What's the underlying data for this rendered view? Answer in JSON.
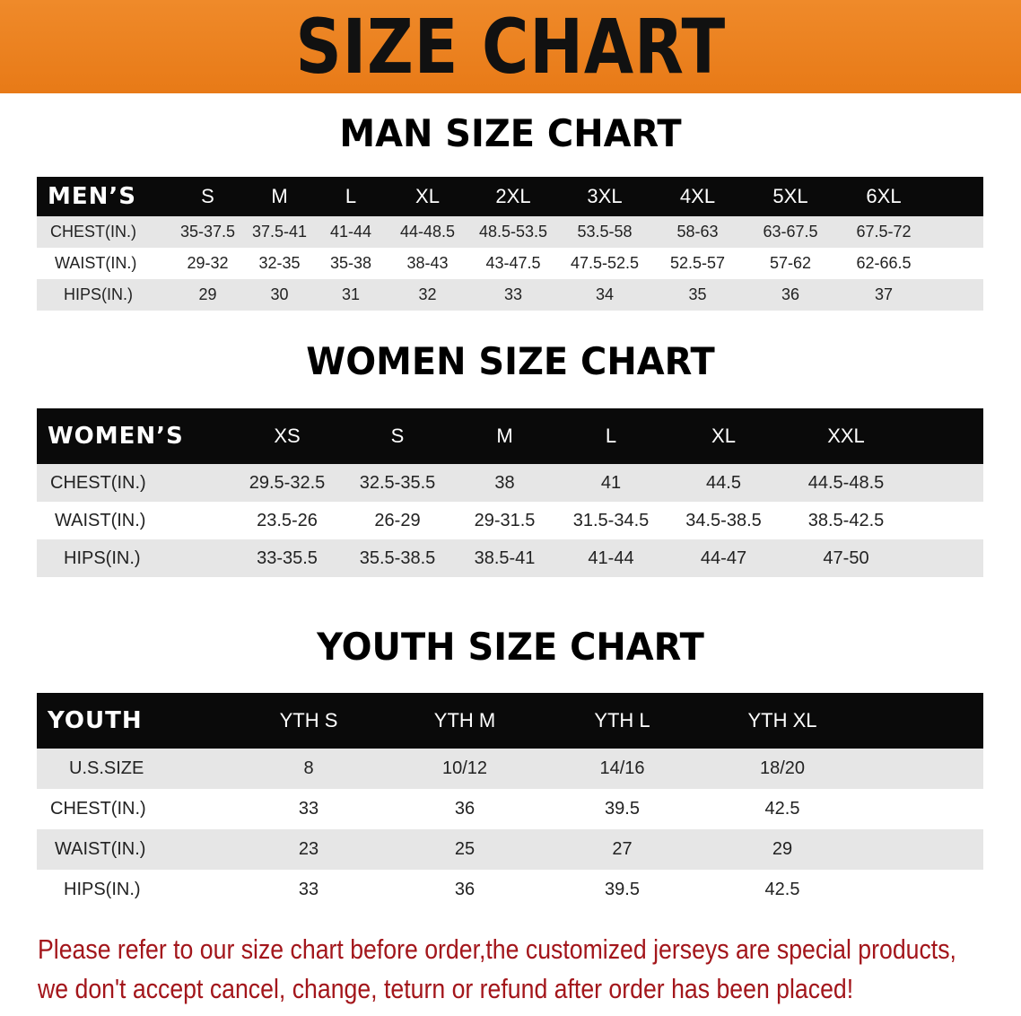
{
  "banner": "SIZE CHART",
  "men": {
    "title": "MAN SIZE CHART",
    "header": "MEN’S",
    "sizes": [
      "S",
      "M",
      "L",
      "XL",
      "2XL",
      "3XL",
      "4XL",
      "5XL",
      "6XL"
    ],
    "rows": [
      {
        "label": "CHEST(IN.)",
        "values": [
          "35-37.5",
          "37.5-41",
          "41-44",
          "44-48.5",
          "48.5-53.5",
          "53.5-58",
          "58-63",
          "63-67.5",
          "67.5-72"
        ]
      },
      {
        "label": "WAIST(IN.)",
        "values": [
          "29-32",
          "32-35",
          "35-38",
          "38-43",
          "43-47.5",
          "47.5-52.5",
          "52.5-57",
          "57-62",
          "62-66.5"
        ]
      },
      {
        "label": "HIPS(IN.)",
        "values": [
          "29",
          "30",
          "31",
          "32",
          "33",
          "34",
          "35",
          "36",
          "37"
        ]
      }
    ]
  },
  "women": {
    "title": "WOMEN SIZE CHART",
    "header": "WOMEN’S",
    "sizes": [
      "XS",
      "S",
      "M",
      "L",
      "XL",
      "XXL"
    ],
    "rows": [
      {
        "label": "CHEST(IN.)",
        "values": [
          "29.5-32.5",
          "32.5-35.5",
          "38",
          "41",
          "44.5",
          "44.5-48.5"
        ]
      },
      {
        "label": "WAIST(IN.)",
        "values": [
          "23.5-26",
          "26-29",
          "29-31.5",
          "31.5-34.5",
          "34.5-38.5",
          "38.5-42.5"
        ]
      },
      {
        "label": "HIPS(IN.)",
        "values": [
          "33-35.5",
          "35.5-38.5",
          "38.5-41",
          "41-44",
          "44-47",
          "47-50"
        ]
      }
    ]
  },
  "youth": {
    "title": "YOUTH SIZE CHART",
    "header": "YOUTH",
    "sizes": [
      "YTH S",
      "YTH M",
      "YTH L",
      "YTH XL"
    ],
    "rows": [
      {
        "label": "U.S.SIZE",
        "values": [
          "8",
          "10/12",
          "14/16",
          "18/20"
        ]
      },
      {
        "label": "CHEST(IN.)",
        "values": [
          "33",
          "36",
          "39.5",
          "42.5"
        ]
      },
      {
        "label": "WAIST(IN.)",
        "values": [
          "23",
          "25",
          "27",
          "29"
        ]
      },
      {
        "label": "HIPS(IN.)",
        "values": [
          "33",
          "36",
          "39.5",
          "42.5"
        ]
      }
    ]
  },
  "note": {
    "line1": "Please refer to our size chart before order,the customized jerseys are special products,",
    "line2": "we don't accept cancel, change, teturn or refund after order has been placed!"
  },
  "colors": {
    "banner": "#e87a17",
    "header_row": "#0a0a0a",
    "stripe": "#e6e6e6",
    "note": "#a3161b"
  }
}
